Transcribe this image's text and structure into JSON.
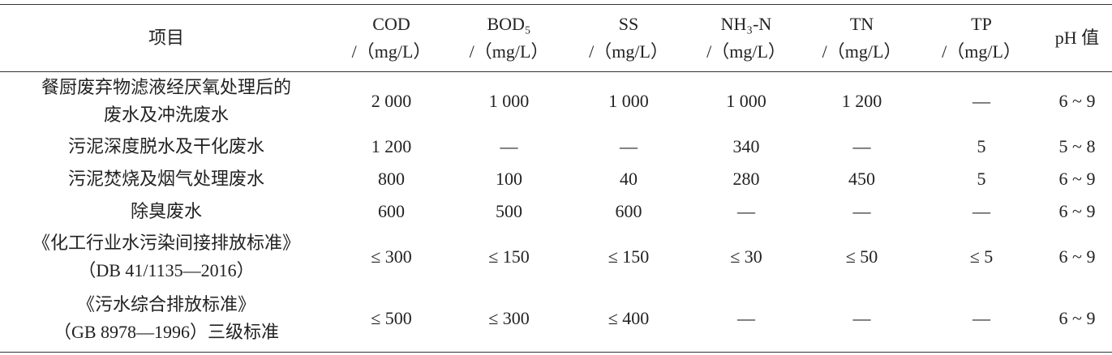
{
  "table": {
    "header": [
      {
        "lines": [
          "项目"
        ]
      },
      {
        "lines": [
          "COD",
          "/（mg/L）"
        ]
      },
      {
        "lines": [
          "BOD₅",
          "/（mg/L）"
        ]
      },
      {
        "lines": [
          "SS",
          "/（mg/L）"
        ]
      },
      {
        "lines": [
          "NH₃-N",
          "/（mg/L）"
        ]
      },
      {
        "lines": [
          "TN",
          "/（mg/L）"
        ]
      },
      {
        "lines": [
          "TP",
          "/（mg/L）"
        ]
      },
      {
        "lines": [
          "pH 值"
        ]
      }
    ],
    "rows": [
      {
        "item": [
          "餐厨废弃物滤液经厌氧处理后的",
          "废水及冲洗废水"
        ],
        "values": [
          "2 000",
          "1 000",
          "1 000",
          "1 000",
          "1 200",
          "—",
          "6 ~ 9"
        ]
      },
      {
        "item": [
          "污泥深度脱水及干化废水"
        ],
        "values": [
          "1 200",
          "—",
          "—",
          "340",
          "—",
          "5",
          "5 ~ 8"
        ]
      },
      {
        "item": [
          "污泥焚烧及烟气处理废水"
        ],
        "values": [
          "800",
          "100",
          "40",
          "280",
          "450",
          "5",
          "6 ~ 9"
        ]
      },
      {
        "item": [
          "除臭废水"
        ],
        "values": [
          "600",
          "500",
          "600",
          "—",
          "—",
          "—",
          "6 ~ 9"
        ]
      },
      {
        "item": [
          "《化工行业水污染间接排放标准》",
          "（DB 41/1135—2016）"
        ],
        "values": [
          "≤ 300",
          "≤ 150",
          "≤ 150",
          "≤ 30",
          "≤ 50",
          "≤ 5",
          "6 ~ 9"
        ]
      },
      {
        "item": [
          "《污水综合排放标准》",
          "（GB 8978—1996）三级标准"
        ],
        "values": [
          "≤ 500",
          "≤ 300",
          "≤ 400",
          "—",
          "—",
          "—",
          "6 ~ 9"
        ]
      }
    ]
  }
}
